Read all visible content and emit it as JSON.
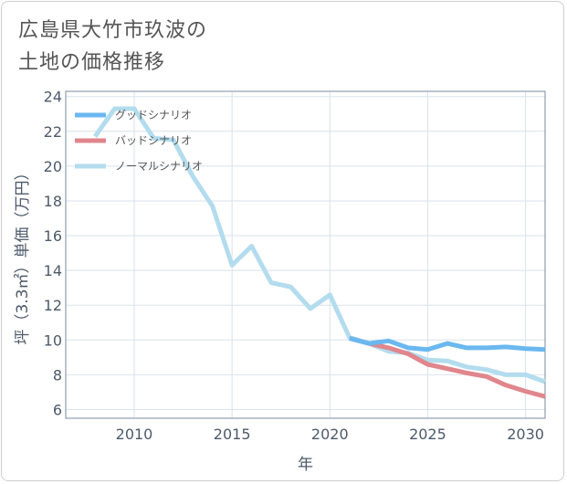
{
  "title_lines": [
    "広島県大竹市玖波の",
    "土地の価格推移"
  ],
  "colors": {
    "good": "#6ab8ef",
    "bad": "#e0868c",
    "normal": "#b3dcee",
    "grid": "#d9e2ec",
    "axis": "#7a8a9e",
    "text": "#4d5a6a"
  },
  "chart_data": {
    "type": "line",
    "title": "広島県大竹市玖波の土地の価格推移",
    "xlabel": "年",
    "ylabel": "坪（3.3㎡）単価（万円）",
    "xlim": [
      2006.5,
      2031
    ],
    "ylim": [
      5.5,
      24.3
    ],
    "xticks": [
      2010,
      2015,
      2020,
      2025,
      2030
    ],
    "yticks": [
      6,
      8,
      10,
      12,
      14,
      16,
      18,
      20,
      22,
      24
    ],
    "legend_position": "top-left",
    "series": [
      {
        "key": "good",
        "name": "グッドシナリオ",
        "x": [
          2021,
          2022,
          2023,
          2024,
          2025,
          2026,
          2027,
          2028,
          2029,
          2030,
          2031
        ],
        "y": [
          10.1,
          9.8,
          9.95,
          9.55,
          9.45,
          9.8,
          9.55,
          9.55,
          9.6,
          9.5,
          9.45
        ]
      },
      {
        "key": "bad",
        "name": "バッドシナリオ",
        "x": [
          2021,
          2022,
          2023,
          2024,
          2025,
          2026,
          2027,
          2028,
          2029,
          2030,
          2031
        ],
        "y": [
          10.1,
          9.8,
          9.55,
          9.2,
          8.6,
          8.35,
          8.1,
          7.9,
          7.4,
          7.05,
          6.75
        ]
      },
      {
        "key": "normal",
        "name": "ノーマルシナリオ",
        "x": [
          2008,
          2009,
          2010,
          2011,
          2012,
          2013,
          2014,
          2015,
          2016,
          2017,
          2018,
          2019,
          2020,
          2021,
          2022,
          2023,
          2024,
          2025,
          2026,
          2027,
          2028,
          2029,
          2030,
          2031
        ],
        "y": [
          21.7,
          23.3,
          23.3,
          21.6,
          21.5,
          19.4,
          17.7,
          14.3,
          15.4,
          13.3,
          13.05,
          11.8,
          12.6,
          10.15,
          9.8,
          9.35,
          9.25,
          8.85,
          8.8,
          8.45,
          8.3,
          8.0,
          8.0,
          7.6
        ]
      }
    ]
  }
}
